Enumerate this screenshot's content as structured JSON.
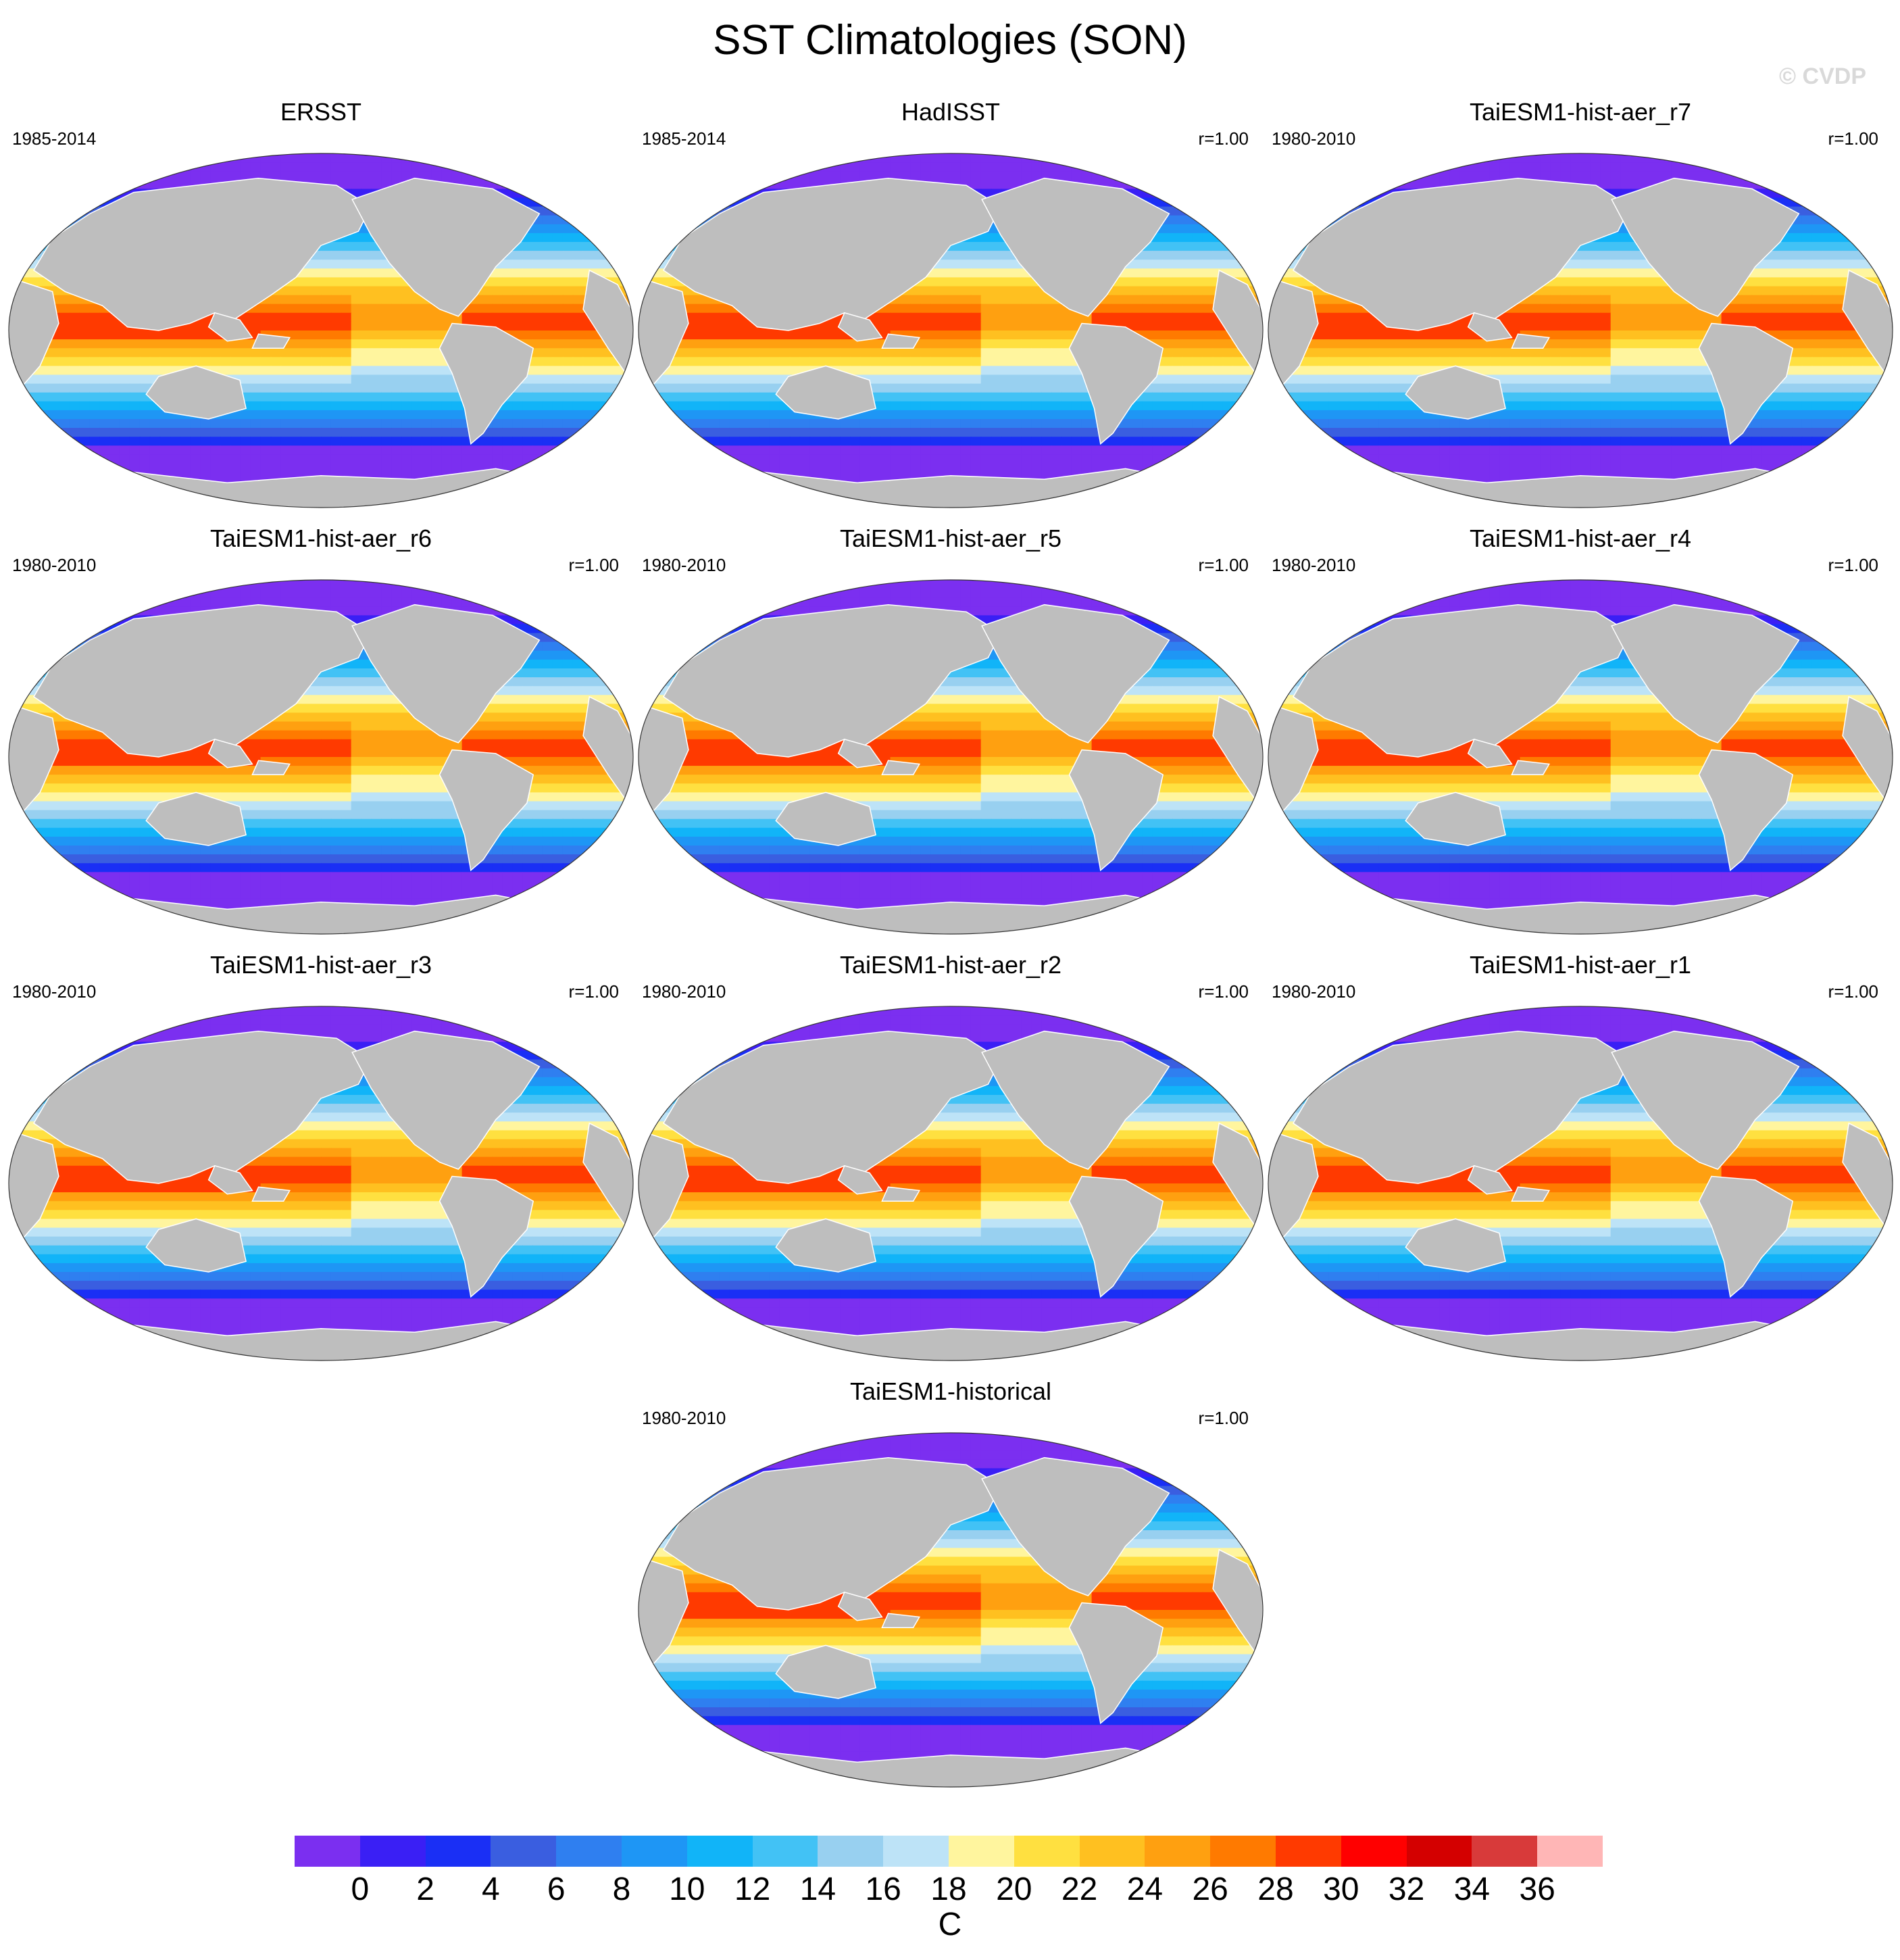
{
  "title": "SST Climatologies (SON)",
  "watermark": "© CVDP",
  "panels": [
    {
      "title": "ERSST",
      "years": "1985-2014",
      "r": ""
    },
    {
      "title": "HadISST",
      "years": "1985-2014",
      "r": "r=1.00"
    },
    {
      "title": "TaiESM1-hist-aer_r7",
      "years": "1980-2010",
      "r": "r=1.00"
    },
    {
      "title": "TaiESM1-hist-aer_r6",
      "years": "1980-2010",
      "r": "r=1.00"
    },
    {
      "title": "TaiESM1-hist-aer_r5",
      "years": "1980-2010",
      "r": "r=1.00"
    },
    {
      "title": "TaiESM1-hist-aer_r4",
      "years": "1980-2010",
      "r": "r=1.00"
    },
    {
      "title": "TaiESM1-hist-aer_r3",
      "years": "1980-2010",
      "r": "r=1.00"
    },
    {
      "title": "TaiESM1-hist-aer_r2",
      "years": "1980-2010",
      "r": "r=1.00"
    },
    {
      "title": "TaiESM1-hist-aer_r1",
      "years": "1980-2010",
      "r": "r=1.00"
    },
    {
      "title": "TaiESM1-historical",
      "years": "1980-2010",
      "r": "r=1.00"
    }
  ],
  "colorbar": {
    "units": "C",
    "labels": [
      "0",
      "2",
      "4",
      "6",
      "8",
      "10",
      "12",
      "14",
      "16",
      "18",
      "20",
      "22",
      "24",
      "26",
      "28",
      "30",
      "32",
      "34",
      "36"
    ],
    "colors": [
      "#7b2ff0",
      "#3a1ff5",
      "#1a2ff5",
      "#3a5ee0",
      "#2f7ff0",
      "#1e96f5",
      "#11b4f8",
      "#42c2f5",
      "#98d0f0",
      "#bde3f7",
      "#fff59e",
      "#ffe040",
      "#ffc020",
      "#ffa010",
      "#ff7a00",
      "#ff3a00",
      "#ff0000",
      "#d40000",
      "#d83a3a",
      "#ffb6b6"
    ]
  },
  "map": {
    "land_color": "#bebebe",
    "band_colors": [
      "#7b2ff0",
      "#3a1ff5",
      "#1a2ff5",
      "#3a5ee0",
      "#2f7ff0",
      "#1e96f5",
      "#11b4f8",
      "#42c2f5",
      "#98d0f0",
      "#bde3f7",
      "#fff59e",
      "#ffe040",
      "#ffc020",
      "#ffa010",
      "#ff7a00",
      "#ff3a00"
    ]
  }
}
